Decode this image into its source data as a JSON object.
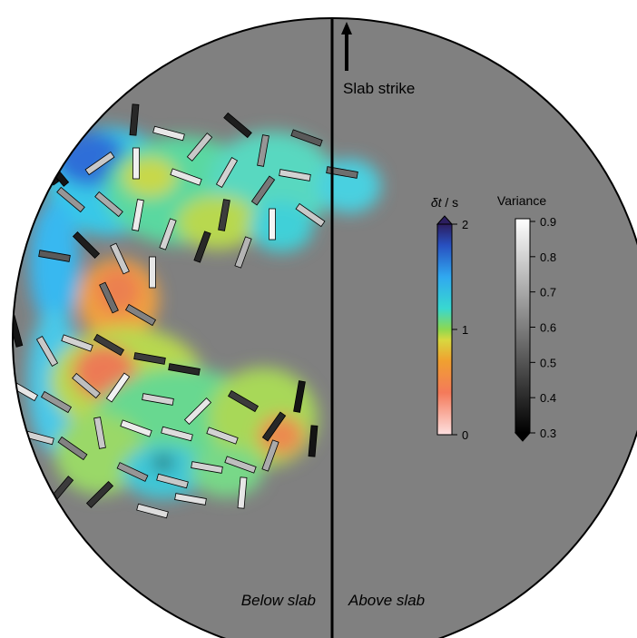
{
  "labels": {
    "slab_strike": "Slab strike",
    "below_slab": "Below slab",
    "above_slab": "Above slab"
  },
  "colorbar_dt": {
    "title_symbol": "δt",
    "title_unit": " / s",
    "ticks": [
      "0",
      "1",
      "2"
    ],
    "colors": [
      "#fde0e0",
      "#f47a5a",
      "#f0a030",
      "#d8d840",
      "#8ed850",
      "#38d8d0",
      "#30a8f0",
      "#2850c0",
      "#2c1e60"
    ]
  },
  "colorbar_variance": {
    "title": "Variance",
    "ticks": [
      "0.3",
      "0.4",
      "0.5",
      "0.6",
      "0.7",
      "0.8",
      "0.9"
    ]
  },
  "colors": {
    "background": "#808080",
    "outline": "#000000"
  }
}
